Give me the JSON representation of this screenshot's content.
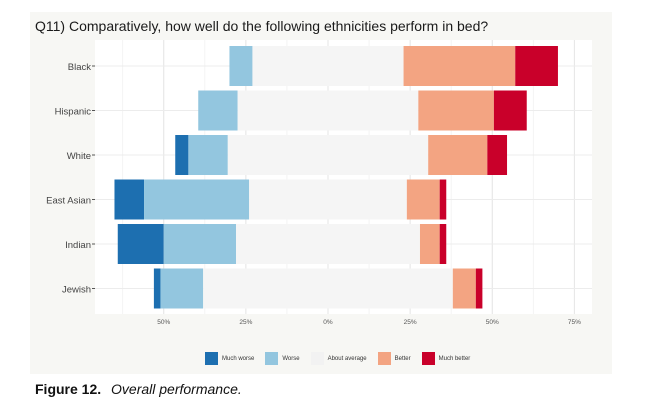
{
  "chart_data": {
    "type": "bar",
    "subtype": "diverging-stacked-horizontal",
    "title": "Q11) Comparatively, how well do the following ethnicities perform in bed?",
    "categories": [
      "Black",
      "Hispanic",
      "White",
      "East Asian",
      "Indian",
      "Jewish"
    ],
    "series": [
      {
        "name": "Much worse",
        "color": "#1d6fb0",
        "values": [
          0,
          0,
          4,
          9,
          14,
          2
        ]
      },
      {
        "name": "Worse",
        "color": "#93c6df",
        "values": [
          7,
          12,
          12,
          32,
          22,
          13
        ]
      },
      {
        "name": "About average",
        "color": "#f5f5f5",
        "values": [
          46,
          55,
          61,
          48,
          56,
          76
        ]
      },
      {
        "name": "Better",
        "color": "#f3a482",
        "values": [
          34,
          23,
          18,
          10,
          6,
          7
        ]
      },
      {
        "name": "Much better",
        "color": "#c9002a",
        "values": [
          13,
          10,
          6,
          2,
          2,
          2
        ]
      }
    ],
    "xaxis": {
      "ticks": [
        -50,
        -25,
        0,
        25,
        50,
        75
      ],
      "tick_labels": [
        "50%",
        "25%",
        "0%",
        "25%",
        "50%",
        "75%"
      ],
      "xlim": [
        -72,
        76
      ]
    },
    "grid": true,
    "legend_position": "bottom"
  },
  "caption": {
    "label": "Figure 12.",
    "text": "Overall performance."
  }
}
